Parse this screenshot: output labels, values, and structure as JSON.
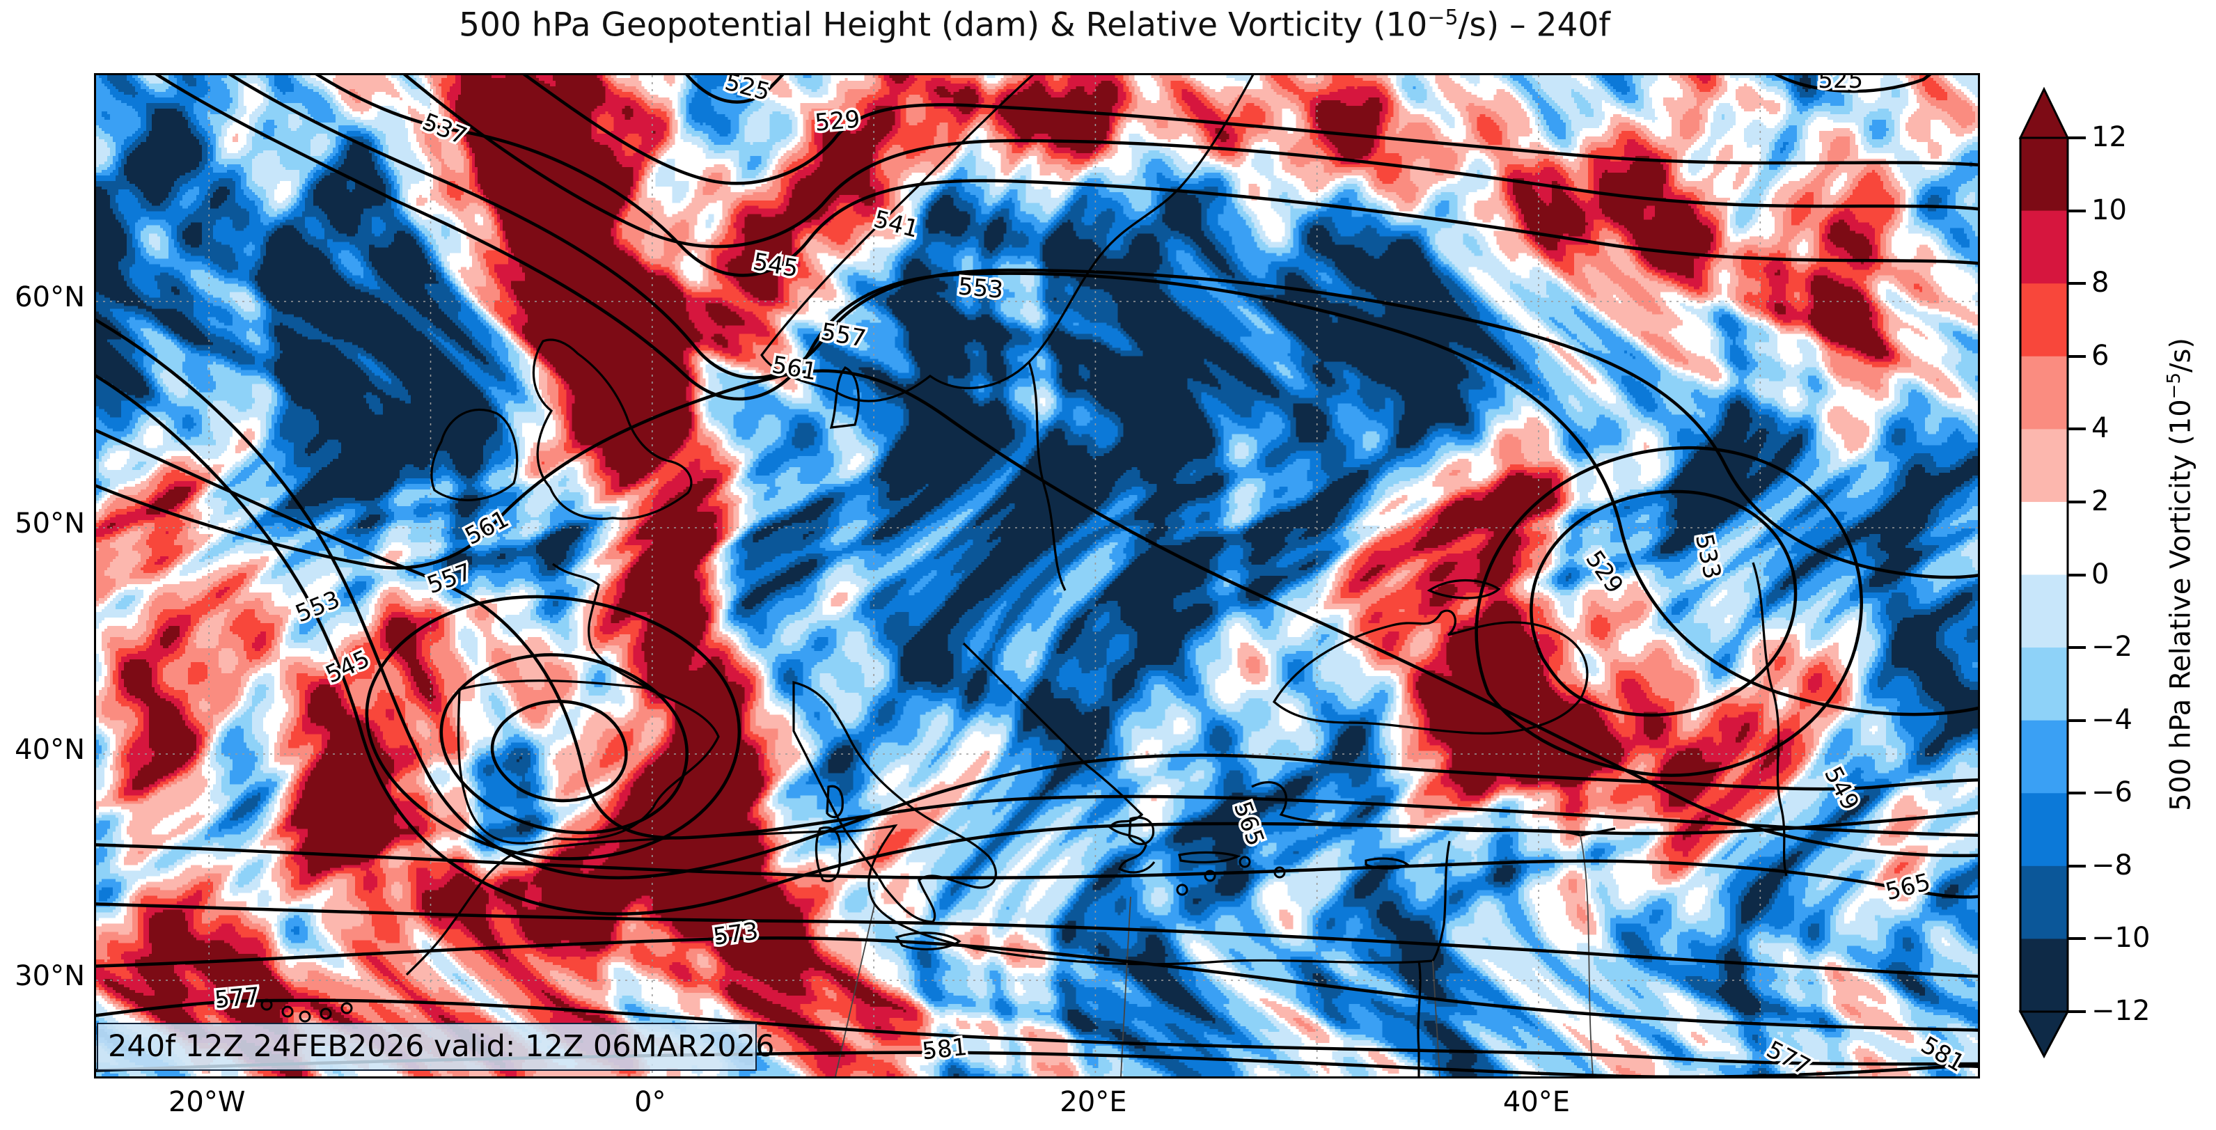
{
  "title": {
    "pre": "500 hPa Geopotential Height (dam) & Relative Vorticity (10",
    "sup": "−5",
    "post": "/s) – 240f"
  },
  "annotation": {
    "text": "240f 12Z 24FEB2026 valid: 12Z 06MAR2026"
  },
  "axes": {
    "x_ticks": [
      {
        "label": "20°W",
        "lon": -20
      },
      {
        "label": "0°",
        "lon": 0
      },
      {
        "label": "20°E",
        "lon": 20
      },
      {
        "label": "40°E",
        "lon": 40
      }
    ],
    "y_ticks": [
      {
        "label": "60°N",
        "lat": 60
      },
      {
        "label": "50°N",
        "lat": 50
      },
      {
        "label": "40°N",
        "lat": 40
      },
      {
        "label": "30°N",
        "lat": 30
      }
    ]
  },
  "colorbar": {
    "label_pre": "500 hPa Relative Vorticity (10",
    "label_sup": "−5",
    "label_post": "/s)",
    "tick_labels": [
      "12",
      "10",
      "8",
      "6",
      "4",
      "2",
      "0",
      "−2",
      "−4",
      "−6",
      "−8",
      "−10",
      "−12"
    ],
    "over_color": "#7d0b15",
    "under_color": "#0e2a47",
    "segment_colors_top_to_bottom": [
      "#7d0b15",
      "#d6163e",
      "#f8473b",
      "#fa8c80",
      "#fcb7ae",
      "#ffffff",
      "#c8e6fa",
      "#8ed2f8",
      "#3aa0f4",
      "#0c79d8",
      "#0b5799",
      "#0e2a47"
    ]
  },
  "chart_data": {
    "type": "heatmap",
    "title": "500 hPa Geopotential Height (dam) & Relative Vorticity (10⁻⁵/s) – 240f",
    "colorbar_label": "500 hPa Relative Vorticity (10⁻⁵/s)",
    "forecast_annotation": "240f 12Z 24FEB2026 valid: 12Z 06MAR2026",
    "projection_note": "lat-lon map, approx 25°W–60°E, 25°N–70°N",
    "lon_ticks_deg": [
      -20,
      0,
      20,
      40
    ],
    "lat_ticks_deg": [
      60,
      50,
      40,
      30
    ],
    "vorticity_levels": [
      -12,
      -10,
      -8,
      -6,
      -4,
      -2,
      0,
      2,
      4,
      6,
      8,
      10,
      12
    ],
    "vorticity_palette_low_to_high": [
      "#0e2a47",
      "#0b5799",
      "#0c79d8",
      "#3aa0f4",
      "#8ed2f8",
      "#c8e6fa",
      "#ffffff",
      "#fcb7ae",
      "#fa8c80",
      "#f8473b",
      "#d6163e",
      "#7d0b15"
    ],
    "height_contour_interval_dam": 4,
    "height_contour_values_dam": [
      525,
      529,
      533,
      537,
      541,
      545,
      549,
      553,
      557,
      561,
      565,
      569,
      573,
      577,
      581
    ],
    "height_contour_labels": [
      {
        "v": "525",
        "x": 34.6,
        "y": 1.3,
        "r": 15
      },
      {
        "v": "525",
        "x": 92.7,
        "y": 0.6,
        "r": 0
      },
      {
        "v": "529",
        "x": 39.4,
        "y": 4.7,
        "r": -5
      },
      {
        "v": "537",
        "x": 18.5,
        "y": 5.5,
        "r": 22
      },
      {
        "v": "541",
        "x": 42.5,
        "y": 15.0,
        "r": 15
      },
      {
        "v": "545",
        "x": 36.1,
        "y": 19.1,
        "r": 10
      },
      {
        "v": "553",
        "x": 47.0,
        "y": 21.4,
        "r": 5
      },
      {
        "v": "557",
        "x": 39.7,
        "y": 26.1,
        "r": 10
      },
      {
        "v": "561",
        "x": 37.1,
        "y": 29.4,
        "r": 10
      },
      {
        "v": "529",
        "x": 80.1,
        "y": 49.7,
        "r": 55
      },
      {
        "v": "533",
        "x": 85.6,
        "y": 48.1,
        "r": 78
      },
      {
        "v": "561",
        "x": 20.8,
        "y": 45.3,
        "r": -28
      },
      {
        "v": "557",
        "x": 18.8,
        "y": 50.4,
        "r": -20
      },
      {
        "v": "553",
        "x": 11.8,
        "y": 53.2,
        "r": -22
      },
      {
        "v": "545",
        "x": 13.4,
        "y": 59.2,
        "r": -25
      },
      {
        "v": "549",
        "x": 92.7,
        "y": 71.3,
        "r": 62
      },
      {
        "v": "565",
        "x": 61.2,
        "y": 74.8,
        "r": 70
      },
      {
        "v": "565",
        "x": 96.3,
        "y": 81.2,
        "r": -14
      },
      {
        "v": "573",
        "x": 34.0,
        "y": 85.9,
        "r": -8
      },
      {
        "v": "577",
        "x": 7.5,
        "y": 92.3,
        "r": -5
      },
      {
        "v": "577",
        "x": 89.9,
        "y": 98.3,
        "r": 28
      },
      {
        "v": "581",
        "x": 45.1,
        "y": 97.4,
        "r": -6
      },
      {
        "v": "581",
        "x": 98.1,
        "y": 97.9,
        "r": 30
      }
    ]
  }
}
